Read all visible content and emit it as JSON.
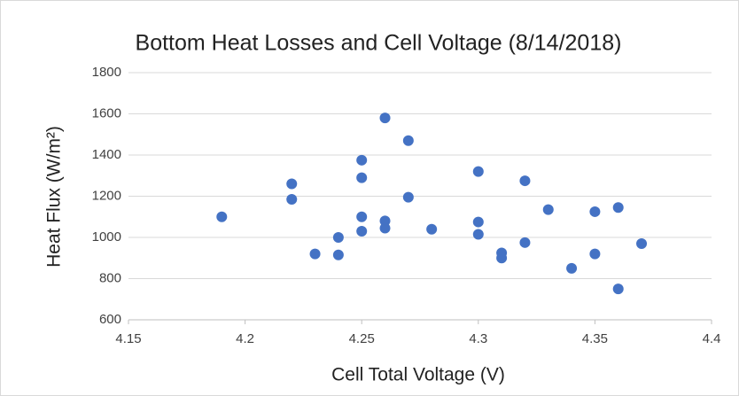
{
  "chart_data": {
    "type": "scatter",
    "title": "Bottom Heat Losses and Cell Voltage (8/14/2018)",
    "x_label": "Cell Total Voltage (V)",
    "y_label": "Heat Flux (W/m²)",
    "x": [
      4.19,
      4.22,
      4.22,
      4.23,
      4.24,
      4.24,
      4.25,
      4.25,
      4.25,
      4.25,
      4.26,
      4.26,
      4.26,
      4.27,
      4.27,
      4.28,
      4.3,
      4.3,
      4.3,
      4.31,
      4.31,
      4.32,
      4.32,
      4.33,
      4.34,
      4.35,
      4.35,
      4.36,
      4.36,
      4.37
    ],
    "values": [
      1100,
      1260,
      1185,
      920,
      1000,
      915,
      1375,
      1290,
      1100,
      1030,
      1580,
      1080,
      1045,
      1470,
      1195,
      1040,
      1320,
      1075,
      1015,
      925,
      900,
      1275,
      975,
      1135,
      850,
      1125,
      920,
      1145,
      750,
      970
    ],
    "color": "#4472c4",
    "xlim": [
      4.15,
      4.4
    ],
    "xticks": [
      4.15,
      4.2,
      4.25,
      4.3,
      4.35,
      4.4
    ],
    "ylim": [
      600,
      1800
    ],
    "yticks": [
      600,
      800,
      1000,
      1200,
      1400,
      1600,
      1800
    ],
    "grid": true
  }
}
